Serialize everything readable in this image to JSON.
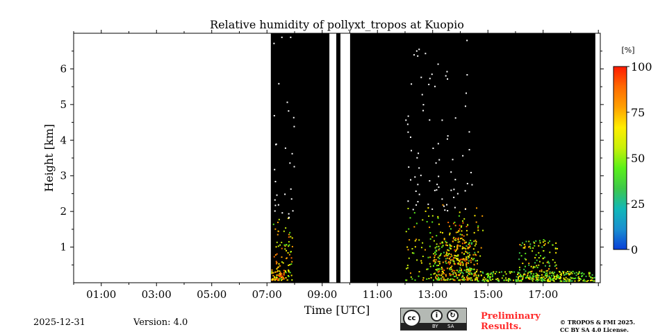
{
  "chart_data": {
    "type": "heatmap",
    "title": "Relative humidity of pollyxt_tropos at Kuopio",
    "xlabel": "Time [UTC]",
    "ylabel": "Height [km]",
    "xlim": [
      0,
      19.07
    ],
    "ylim": [
      0,
      7.0
    ],
    "xticks": [
      {
        "v": 1,
        "label": "01:00"
      },
      {
        "v": 3,
        "label": "03:00"
      },
      {
        "v": 5,
        "label": "05:00"
      },
      {
        "v": 7,
        "label": "07:00"
      },
      {
        "v": 9,
        "label": "09:00"
      },
      {
        "v": 11,
        "label": "11:00"
      },
      {
        "v": 13,
        "label": "13:00"
      },
      {
        "v": 15,
        "label": "15:00"
      },
      {
        "v": 17,
        "label": "17:00"
      }
    ],
    "yticks": [
      {
        "v": 1,
        "label": "1"
      },
      {
        "v": 2,
        "label": "2"
      },
      {
        "v": 3,
        "label": "3"
      },
      {
        "v": 4,
        "label": "4"
      },
      {
        "v": 5,
        "label": "5"
      },
      {
        "v": 6,
        "label": "6"
      }
    ],
    "data_segments_hours": [
      [
        7.14,
        9.26
      ],
      [
        9.51,
        9.66
      ],
      [
        10.01,
        18.89
      ]
    ],
    "colorbar": {
      "label": "[%]",
      "range": [
        0,
        100
      ],
      "ticks": [
        {
          "v": 0,
          "label": "0"
        },
        {
          "v": 25,
          "label": "25"
        },
        {
          "v": 50,
          "label": "50"
        },
        {
          "v": 75,
          "label": "75"
        },
        {
          "v": 100,
          "label": "100"
        }
      ],
      "colors": [
        "#0a3fd8",
        "#1a8fd0",
        "#12b8b8",
        "#3ec84a",
        "#5af01a",
        "#c8f00a",
        "#ffee00",
        "#ffa000",
        "#ff6a00",
        "#ff1a00"
      ]
    },
    "clusters": [
      {
        "t0": 7.15,
        "t1": 7.9,
        "h0": 0.05,
        "h1": 1.8,
        "rh": [
          40,
          90
        ],
        "n": 90
      },
      {
        "t0": 7.15,
        "t1": 7.6,
        "h0": 0.05,
        "h1": 0.35,
        "rh": [
          60,
          100
        ],
        "n": 40
      },
      {
        "t0": 12.0,
        "t1": 14.8,
        "h0": 0.05,
        "h1": 2.2,
        "rh": [
          40,
          80
        ],
        "n": 160
      },
      {
        "t0": 13.0,
        "t1": 14.6,
        "h0": 0.05,
        "h1": 1.2,
        "rh": [
          30,
          95
        ],
        "n": 260
      },
      {
        "t0": 13.5,
        "t1": 14.3,
        "h0": 0.5,
        "h1": 1.7,
        "rh": [
          50,
          100
        ],
        "n": 80
      },
      {
        "t0": 14.6,
        "t1": 18.85,
        "h0": 0.02,
        "h1": 0.3,
        "rh": [
          30,
          70
        ],
        "n": 260
      },
      {
        "t0": 16.1,
        "t1": 17.5,
        "h0": 0.05,
        "h1": 1.2,
        "rh": [
          30,
          80
        ],
        "n": 150
      },
      {
        "t0": 12.0,
        "t1": 14.5,
        "h0": 2.0,
        "h1": 6.8,
        "rh": [
          60,
          80
        ],
        "n": 80
      },
      {
        "t0": 7.15,
        "t1": 8.0,
        "h0": 1.8,
        "h1": 6.9,
        "rh": [
          70,
          85
        ],
        "n": 30
      }
    ]
  },
  "footer": {
    "date": "2025-12-31",
    "version": "Version: 4.0",
    "preliminary_line1": "Preliminary",
    "preliminary_line2": "Results.",
    "copyright_line1": "© TROPOS & FMI 2025.",
    "copyright_line2": "CC BY SA 4.0 License.",
    "license_logo": {
      "cc": "cc",
      "by": "BY",
      "sa": "SA"
    }
  },
  "colors": {
    "preliminary": "#ff2a2a",
    "data_bg": "#000000"
  }
}
